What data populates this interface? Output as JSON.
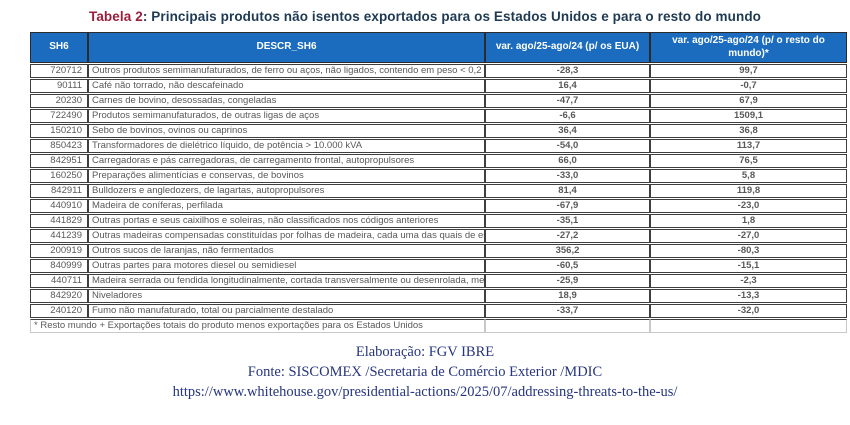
{
  "title": {
    "prefix": "Tabela 2",
    "rest": ": Principais produtos não isentos exportados para os Estados Unidos e para o resto do mundo"
  },
  "table": {
    "headers": [
      "SH6",
      "DESCR_SH6",
      "var. ago/25-ago/24 (p/ os EUA)",
      "var. ago/25-ago/24 (p/ o resto do mundo)*"
    ],
    "rows": [
      {
        "sh6": "720712",
        "descr": "Outros produtos semimanufaturados, de ferro ou aços, não ligados, contendo em peso < 0,2",
        "eua": "-28,3",
        "resto": "99,7"
      },
      {
        "sh6": "90111",
        "descr": "Café não torrado, não descafeinado",
        "eua": "16,4",
        "resto": "-0,7"
      },
      {
        "sh6": "20230",
        "descr": "Carnes de bovino, desossadas, congeladas",
        "eua": "-47,7",
        "resto": "67,9"
      },
      {
        "sh6": "722490",
        "descr": "Produtos semimanufaturados, de outras ligas de aços",
        "eua": "-6,6",
        "resto": "1509,1"
      },
      {
        "sh6": "150210",
        "descr": "Sebo de bovinos, ovinos ou caprinos",
        "eua": "36,4",
        "resto": "36,8"
      },
      {
        "sh6": "850423",
        "descr": "Transformadores de dielétrico líquido, de potência > 10.000 kVA",
        "eua": "-54,0",
        "resto": "113,7"
      },
      {
        "sh6": "842951",
        "descr": "Carregadoras e pás carregadoras, de carregamento frontal, autopropulsores",
        "eua": "66,0",
        "resto": "76,5"
      },
      {
        "sh6": "160250",
        "descr": "Preparações alimentícias e conservas, de bovinos",
        "eua": "-33,0",
        "resto": "5,8"
      },
      {
        "sh6": "842911",
        "descr": "Bulldozers e angledozers, de lagartas, autopropulsores",
        "eua": "81,4",
        "resto": "119,8"
      },
      {
        "sh6": "440910",
        "descr": "Madeira de coníferas, perfilada",
        "eua": "-67,9",
        "resto": "-23,0"
      },
      {
        "sh6": "441829",
        "descr": "Outras portas e seus caixilhos e soleiras, não classificados nos códigos anteriores",
        "eua": "-35,1",
        "resto": "1,8"
      },
      {
        "sh6": "441239",
        "descr": "Outras madeiras compensadas constituídas por folhas de madeira, cada uma das quais de es",
        "eua": "-27,2",
        "resto": "-27,0"
      },
      {
        "sh6": "200919",
        "descr": "Outros sucos de laranjas, não fermentados",
        "eua": "356,2",
        "resto": "-80,3"
      },
      {
        "sh6": "840999",
        "descr": "Outras partes para motores diesel ou semidiesel",
        "eua": "-60,5",
        "resto": "-15,1"
      },
      {
        "sh6": "440711",
        "descr": "Madeira serrada ou fendida longitudinalmente, cortada transversalmente ou desenrolada, mes",
        "eua": "-25,9",
        "resto": "-2,3"
      },
      {
        "sh6": "842920",
        "descr": "Niveladores",
        "eua": "18,9",
        "resto": "-13,3"
      },
      {
        "sh6": "240120",
        "descr": "Fumo não manufaturado, total ou parcialmente destalado",
        "eua": "-33,7",
        "resto": "-32,0"
      }
    ],
    "footnote": "* Resto mundo + Exportações totais do produto menos exportações para os Estados Unidos"
  },
  "footer": {
    "elaboracao": "Elaboração: FGV IBRE",
    "fonte": "Fonte: SISCOMEX /Secretaria de Comércio Exterior /MDIC",
    "url": "https://www.whitehouse.gov/presidential-actions/2025/07/addressing-threats-to-the-us/"
  },
  "colors": {
    "header_bg": "#1b6cbe",
    "title_red": "#9b1f3c",
    "title_navy": "#1e3a52",
    "footer_navy": "#26357d",
    "body_text": "#595959"
  }
}
